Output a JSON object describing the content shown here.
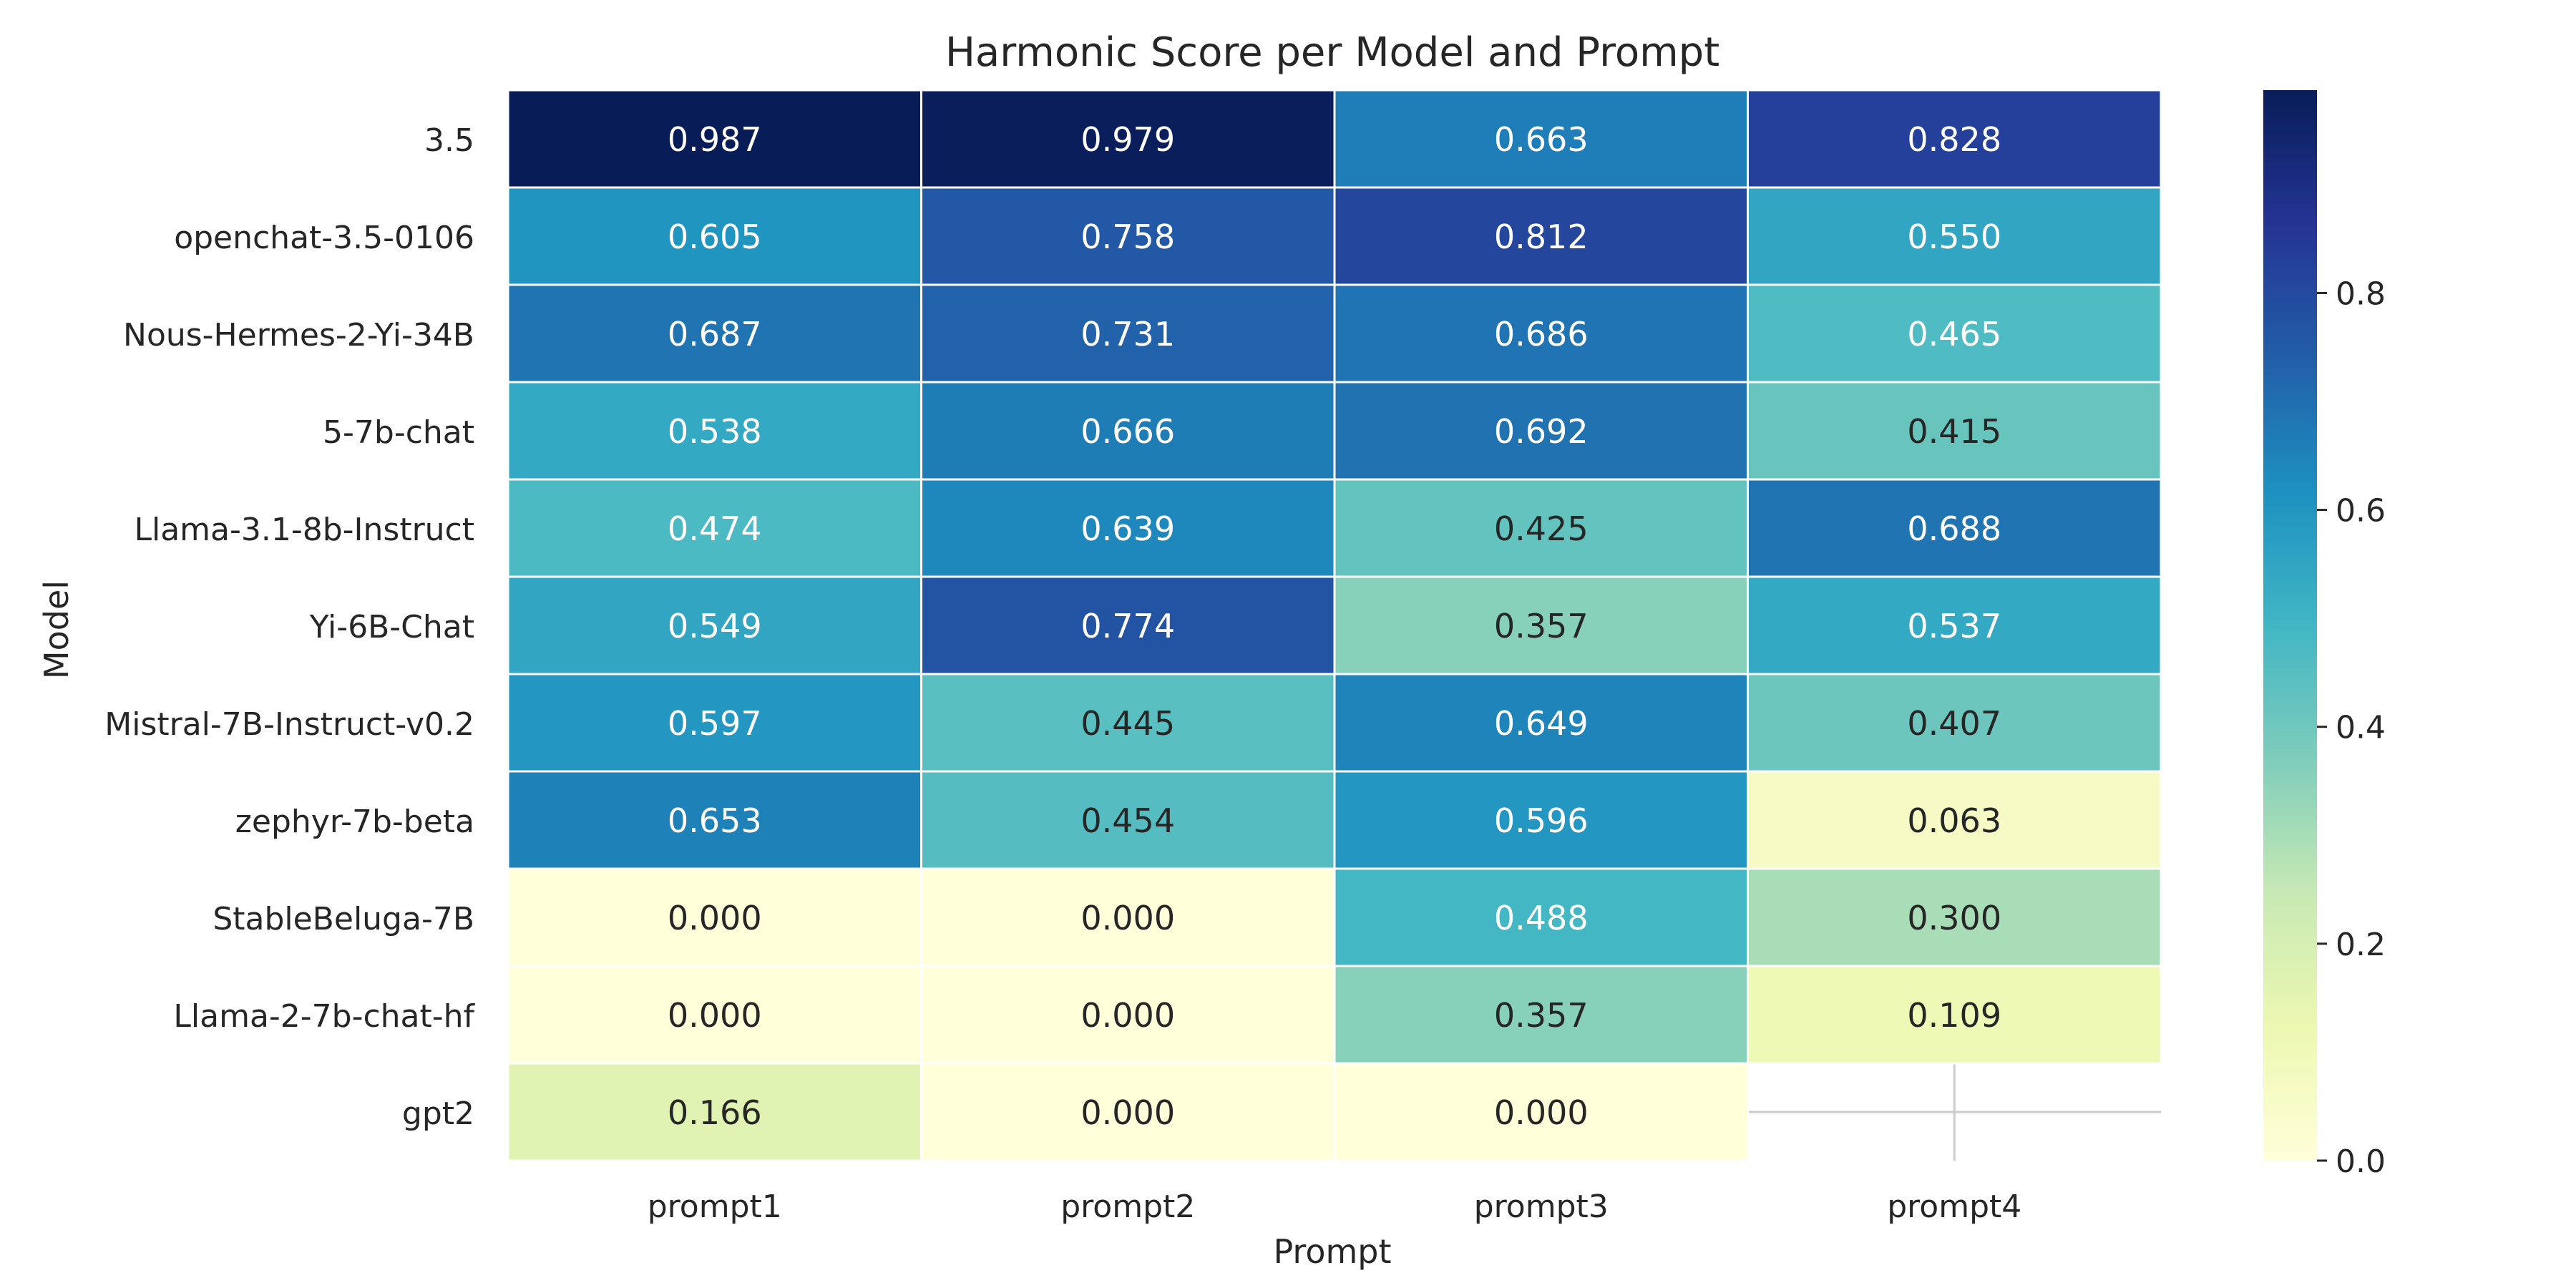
{
  "chart_data": {
    "type": "heatmap",
    "title": "Harmonic Score per Model and Prompt",
    "xlabel": "Prompt",
    "ylabel": "Model",
    "columns": [
      "prompt1",
      "prompt2",
      "prompt3",
      "prompt4"
    ],
    "rows": [
      "3.5",
      "openchat-3.5-0106",
      "Nous-Hermes-2-Yi-34B",
      "5-7b-chat",
      "Llama-3.1-8b-Instruct",
      "Yi-6B-Chat",
      "Mistral-7B-Instruct-v0.2",
      "zephyr-7b-beta",
      "StableBeluga-7B",
      "Llama-2-7b-chat-hf",
      "gpt2"
    ],
    "values": [
      [
        0.987,
        0.979,
        0.663,
        0.828
      ],
      [
        0.605,
        0.758,
        0.812,
        0.55
      ],
      [
        0.687,
        0.731,
        0.686,
        0.465
      ],
      [
        0.538,
        0.666,
        0.692,
        0.415
      ],
      [
        0.474,
        0.639,
        0.425,
        0.688
      ],
      [
        0.549,
        0.774,
        0.357,
        0.537
      ],
      [
        0.597,
        0.445,
        0.649,
        0.407
      ],
      [
        0.653,
        0.454,
        0.596,
        0.063
      ],
      [
        0.0,
        0.0,
        0.488,
        0.3
      ],
      [
        0.0,
        0.0,
        0.357,
        0.109
      ],
      [
        0.166,
        0.0,
        0.0,
        null
      ]
    ],
    "value_format": "3 decimals",
    "colormap": "YlGnBu",
    "vmin": 0.0,
    "vmax": 0.987,
    "colorbar_ticks": [
      0.0,
      0.2,
      0.4,
      0.6,
      0.8
    ],
    "colorbar_tick_labels": [
      "0.0",
      "0.2",
      "0.4",
      "0.6",
      "0.8"
    ],
    "missing_cell_color": "#ffffff",
    "grid_color": "#cccccc",
    "cell_border_color": "#ffffff"
  }
}
